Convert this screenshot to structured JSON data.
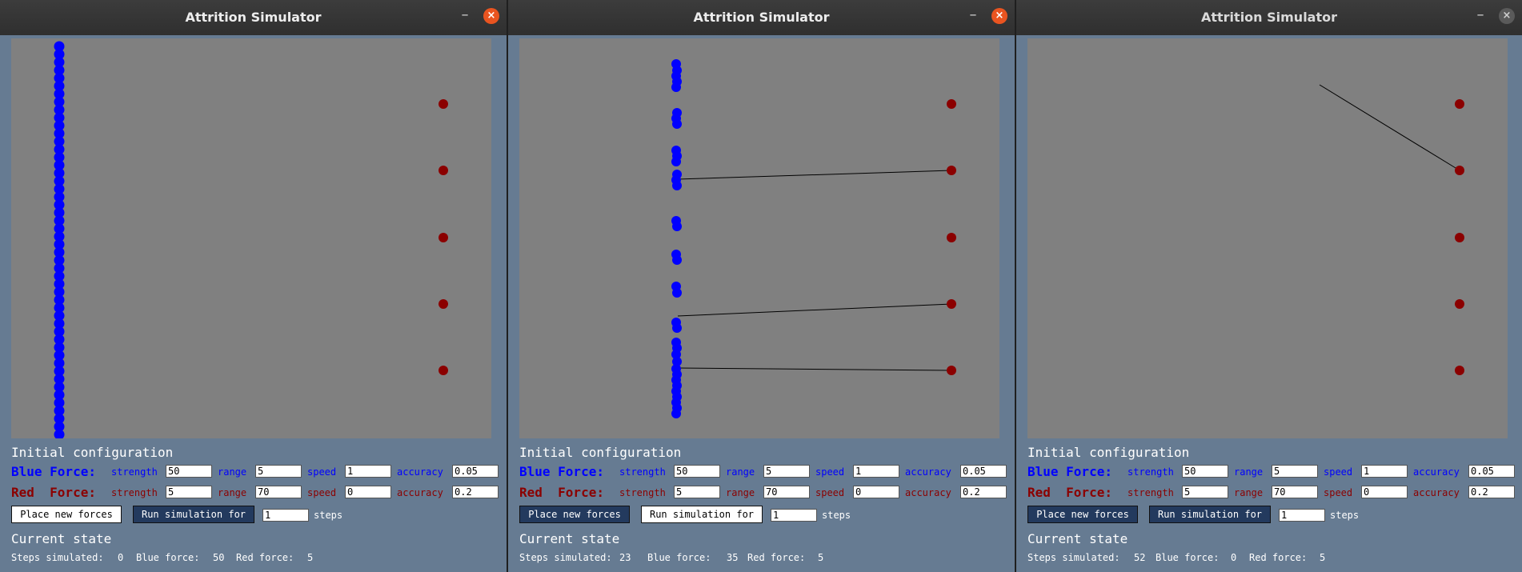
{
  "windows": [
    {
      "id": "w1",
      "title": "Attrition Simulator",
      "minimize_glyph": "–",
      "close_glyph": "×",
      "close_active": true,
      "initial_config_title": "Initial configuration",
      "blue_force": {
        "label": "Blue Force:",
        "strength_label": "strength",
        "strength": "50",
        "range_label": "range",
        "range": "5",
        "speed_label": "speed",
        "speed": "1",
        "accuracy_label": "accuracy",
        "accuracy": "0.05"
      },
      "red_force": {
        "label": "Red  Force:",
        "strength_label": "strength",
        "strength": "5",
        "range_label": "range",
        "range": "70",
        "speed_label": "speed",
        "speed": "0",
        "accuracy_label": "accuracy",
        "accuracy": "0.2"
      },
      "place_button": "Place new forces",
      "run_button": "Run simulation for",
      "place_style": "light",
      "run_style": "dark",
      "steps_value": "1",
      "steps_unit": "steps",
      "current_state_title": "Current state",
      "steps_simulated_label": "Steps simulated:",
      "steps_simulated": "0",
      "blue_force_label": "Blue force:",
      "blue_force_count": "50",
      "red_force_label": "Red force:",
      "red_force_count": "5",
      "colors": {
        "blue_unit": "#0000ff",
        "red_unit": "#8b0000",
        "line": "#000000"
      }
    },
    {
      "id": "w2",
      "title": "Attrition Simulator",
      "minimize_glyph": "–",
      "close_glyph": "×",
      "close_active": true,
      "initial_config_title": "Initial configuration",
      "blue_force": {
        "label": "Blue Force:",
        "strength_label": "strength",
        "strength": "50",
        "range_label": "range",
        "range": "5",
        "speed_label": "speed",
        "speed": "1",
        "accuracy_label": "accuracy",
        "accuracy": "0.05"
      },
      "red_force": {
        "label": "Red  Force:",
        "strength_label": "strength",
        "strength": "5",
        "range_label": "range",
        "range": "70",
        "speed_label": "speed",
        "speed": "0",
        "accuracy_label": "accuracy",
        "accuracy": "0.2"
      },
      "place_button": "Place new forces",
      "run_button": "Run simulation for",
      "place_style": "dark",
      "run_style": "light",
      "steps_value": "1",
      "steps_unit": "steps",
      "current_state_title": "Current state",
      "steps_simulated_label": "Steps simulated:",
      "steps_simulated": "23",
      "blue_force_label": "Blue force:",
      "blue_force_count": "35",
      "red_force_label": "Red force:",
      "red_force_count": "5",
      "colors": {
        "blue_unit": "#0000ff",
        "red_unit": "#8b0000",
        "line": "#000000"
      }
    },
    {
      "id": "w3",
      "title": "Attrition Simulator",
      "minimize_glyph": "–",
      "close_glyph": "×",
      "close_active": false,
      "initial_config_title": "Initial configuration",
      "blue_force": {
        "label": "Blue Force:",
        "strength_label": "strength",
        "strength": "50",
        "range_label": "range",
        "range": "5",
        "speed_label": "speed",
        "speed": "1",
        "accuracy_label": "accuracy",
        "accuracy": "0.05"
      },
      "red_force": {
        "label": "Red  Force:",
        "strength_label": "strength",
        "strength": "5",
        "range_label": "range",
        "range": "70",
        "speed_label": "speed",
        "speed": "0",
        "accuracy_label": "accuracy",
        "accuracy": "0.2"
      },
      "place_button": "Place new forces",
      "run_button": "Run simulation for",
      "place_style": "dark",
      "run_style": "dark",
      "steps_value": "1",
      "steps_unit": "steps",
      "current_state_title": "Current state",
      "steps_simulated_label": "Steps simulated:",
      "steps_simulated": "52",
      "blue_force_label": "Blue force:",
      "blue_force_count": "0",
      "red_force_label": "Red force:",
      "red_force_count": "5",
      "colors": {
        "blue_unit": "#0000ff",
        "red_unit": "#8b0000",
        "line": "#000000"
      }
    }
  ]
}
